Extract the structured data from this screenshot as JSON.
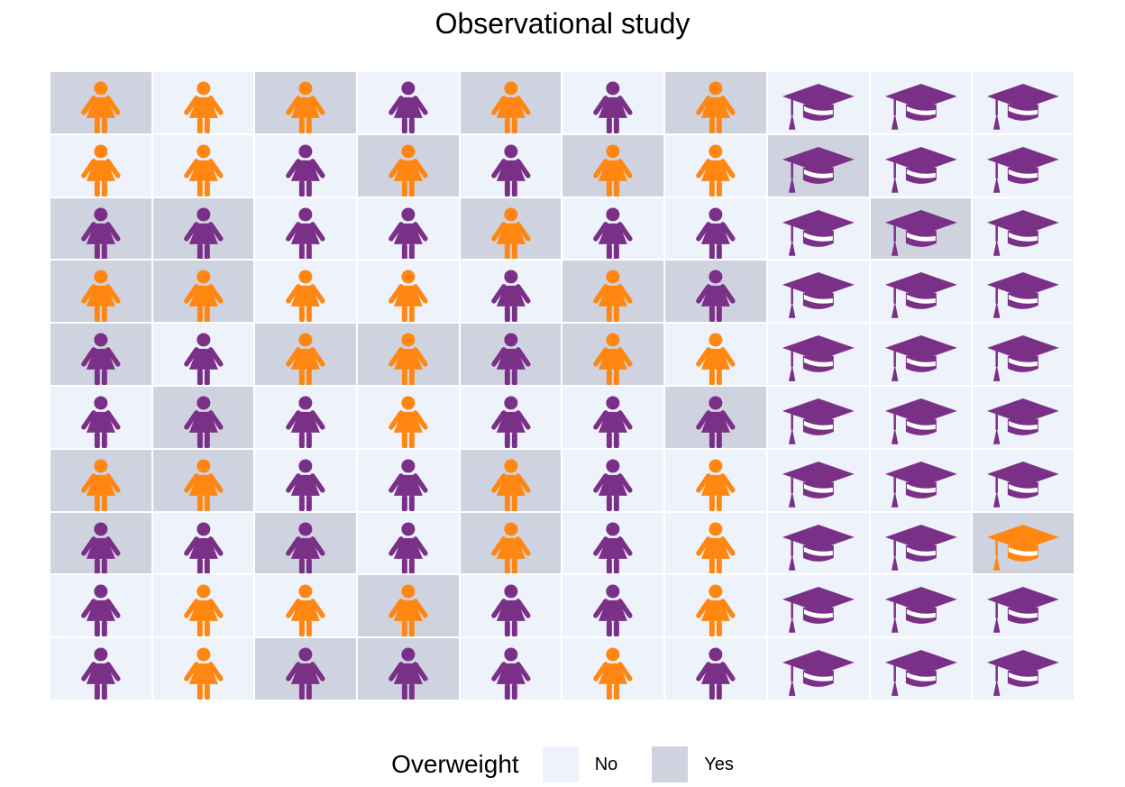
{
  "chart_data": {
    "type": "waffle",
    "title": "Observational study",
    "legend": {
      "title": "Overweight",
      "position": "bottom",
      "entries": [
        {
          "label": "No",
          "color": "#eef2fb"
        },
        {
          "label": "Yes",
          "color": "#cfd3df"
        }
      ]
    },
    "icon_colors": {
      "purple": "#7b3088",
      "orange": "#ff8711"
    },
    "icon_names": {
      "p": "woman-icon",
      "g": "graduation-cap-icon"
    },
    "rows": 10,
    "columns": 10,
    "icon_grid": [
      [
        "p",
        "p",
        "p",
        "p",
        "p",
        "p",
        "p",
        "g",
        "g",
        "g"
      ],
      [
        "p",
        "p",
        "p",
        "p",
        "p",
        "p",
        "p",
        "g",
        "g",
        "g"
      ],
      [
        "p",
        "p",
        "p",
        "p",
        "p",
        "p",
        "p",
        "g",
        "g",
        "g"
      ],
      [
        "p",
        "p",
        "p",
        "p",
        "p",
        "p",
        "p",
        "g",
        "g",
        "g"
      ],
      [
        "p",
        "p",
        "p",
        "p",
        "p",
        "p",
        "p",
        "g",
        "g",
        "g"
      ],
      [
        "p",
        "p",
        "p",
        "p",
        "p",
        "p",
        "p",
        "g",
        "g",
        "g"
      ],
      [
        "p",
        "p",
        "p",
        "p",
        "p",
        "p",
        "p",
        "g",
        "g",
        "g"
      ],
      [
        "p",
        "p",
        "p",
        "p",
        "p",
        "p",
        "p",
        "g",
        "g",
        "g"
      ],
      [
        "p",
        "p",
        "p",
        "p",
        "p",
        "p",
        "p",
        "g",
        "g",
        "g"
      ],
      [
        "p",
        "p",
        "p",
        "p",
        "p",
        "p",
        "p",
        "g",
        "g",
        "g"
      ]
    ],
    "color_grid": [
      [
        "O",
        "O",
        "O",
        "P",
        "O",
        "P",
        "O",
        "P",
        "P",
        "P"
      ],
      [
        "O",
        "O",
        "P",
        "O",
        "P",
        "O",
        "O",
        "P",
        "P",
        "P"
      ],
      [
        "P",
        "P",
        "P",
        "P",
        "O",
        "P",
        "P",
        "P",
        "P",
        "P"
      ],
      [
        "O",
        "O",
        "O",
        "O",
        "P",
        "O",
        "P",
        "P",
        "P",
        "P"
      ],
      [
        "P",
        "P",
        "O",
        "O",
        "P",
        "O",
        "O",
        "P",
        "P",
        "P"
      ],
      [
        "P",
        "P",
        "P",
        "O",
        "P",
        "P",
        "P",
        "P",
        "P",
        "P"
      ],
      [
        "O",
        "O",
        "P",
        "P",
        "O",
        "P",
        "O",
        "P",
        "P",
        "P"
      ],
      [
        "P",
        "P",
        "P",
        "P",
        "O",
        "P",
        "O",
        "P",
        "P",
        "O"
      ],
      [
        "P",
        "O",
        "O",
        "O",
        "P",
        "P",
        "O",
        "P",
        "P",
        "P"
      ],
      [
        "P",
        "O",
        "P",
        "P",
        "P",
        "O",
        "P",
        "P",
        "P",
        "P"
      ]
    ],
    "overweight_grid": [
      [
        1,
        0,
        1,
        0,
        1,
        0,
        1,
        0,
        0,
        0
      ],
      [
        0,
        0,
        0,
        1,
        0,
        1,
        0,
        1,
        0,
        0
      ],
      [
        1,
        1,
        0,
        0,
        1,
        0,
        0,
        0,
        1,
        0
      ],
      [
        1,
        1,
        0,
        0,
        0,
        1,
        1,
        0,
        0,
        0
      ],
      [
        1,
        0,
        1,
        1,
        1,
        1,
        0,
        0,
        0,
        0
      ],
      [
        0,
        1,
        0,
        0,
        0,
        0,
        1,
        0,
        0,
        0
      ],
      [
        1,
        1,
        0,
        0,
        1,
        0,
        0,
        0,
        0,
        0
      ],
      [
        1,
        0,
        1,
        0,
        1,
        0,
        0,
        0,
        0,
        1
      ],
      [
        0,
        0,
        0,
        1,
        0,
        0,
        0,
        0,
        0,
        0
      ],
      [
        0,
        0,
        1,
        1,
        0,
        0,
        0,
        0,
        0,
        0
      ]
    ]
  }
}
